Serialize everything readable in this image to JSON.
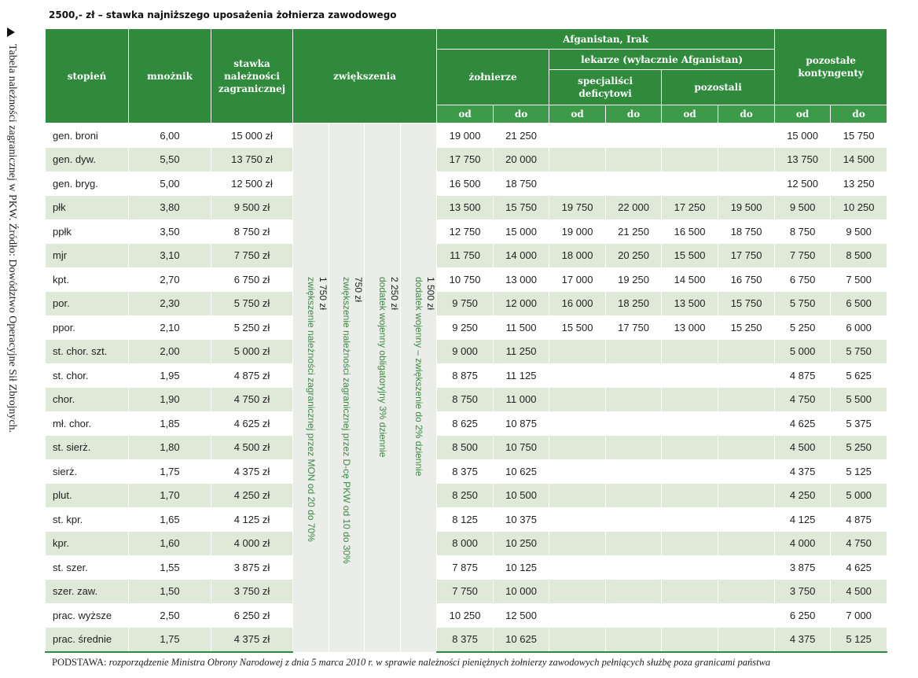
{
  "header": {
    "title": "2500,- zł – stawka najniższego uposażenia żołnierza zawodowego"
  },
  "side_note": "Tabela należności zagranicznej w PKW. Źródło: Dowództwo Operacyjne Sił Zbrojnych.",
  "table": {
    "columns": {
      "rank": "stopień",
      "multiplier": "mnożnik",
      "rate": "stawka należności zagranicznej",
      "increases": "zwiększenia",
      "region": "Afganistan, Irak",
      "soldiers": "żołnierze",
      "doctors": "lekarze (wyłacznie Afganistan)",
      "specialists": "specjaliści deficytowi",
      "other_doctors": "pozostali",
      "contingents": "pozostałe kontyngenty",
      "from": "od",
      "to": "do"
    },
    "increases": [
      {
        "amount": "1 750 zł",
        "description": "zwiększenie należności zagranicznej przez MON od 20 do 70%"
      },
      {
        "amount": "750 zł",
        "description": "zwiększenie należności zagranicznej przez D-cę PKW od 10 do 30%"
      },
      {
        "amount": "2 250 zł",
        "description": "dodatek wojenny obligatoryjny 3% dziennie"
      },
      {
        "amount": "1 500 zł",
        "description": "dodatek wojenny – zwiększenie do 2% dziennie"
      }
    ],
    "rows": [
      {
        "rank": "gen. broni",
        "multiplier": "6,00",
        "rate": "15 000 zł",
        "soldiers": [
          "19 000",
          "21 250"
        ],
        "contingents": [
          "15 000",
          "15 750"
        ]
      },
      {
        "rank": "gen. dyw.",
        "multiplier": "5,50",
        "rate": "13 750 zł",
        "soldiers": [
          "17 750",
          "20 000"
        ],
        "contingents": [
          "13 750",
          "14 500"
        ]
      },
      {
        "rank": "gen. bryg.",
        "multiplier": "5,00",
        "rate": "12 500 zł",
        "soldiers": [
          "16 500",
          "18 750"
        ],
        "contingents": [
          "12 500",
          "13 250"
        ]
      },
      {
        "rank": "płk",
        "multiplier": "3,80",
        "rate": "9 500 zł",
        "soldiers": [
          "13 500",
          "15 750"
        ],
        "specialists": [
          "19 750",
          "22 000"
        ],
        "other_doctors": [
          "17 250",
          "19 500"
        ],
        "contingents": [
          "9 500",
          "10 250"
        ]
      },
      {
        "rank": "ppłk",
        "multiplier": "3,50",
        "rate": "8 750 zł",
        "soldiers": [
          "12 750",
          "15 000"
        ],
        "specialists": [
          "19 000",
          "21 250"
        ],
        "other_doctors": [
          "16 500",
          "18 750"
        ],
        "contingents": [
          "8 750",
          "9 500"
        ]
      },
      {
        "rank": "mjr",
        "multiplier": "3,10",
        "rate": "7 750 zł",
        "soldiers": [
          "11 750",
          "14 000"
        ],
        "specialists": [
          "18 000",
          "20 250"
        ],
        "other_doctors": [
          "15 500",
          "17 750"
        ],
        "contingents": [
          "7 750",
          "8 500"
        ]
      },
      {
        "rank": "kpt.",
        "multiplier": "2,70",
        "rate": "6 750 zł",
        "soldiers": [
          "10 750",
          "13 000"
        ],
        "specialists": [
          "17 000",
          "19 250"
        ],
        "other_doctors": [
          "14 500",
          "16 750"
        ],
        "contingents": [
          "6 750",
          "7 500"
        ]
      },
      {
        "rank": "por.",
        "multiplier": "2,30",
        "rate": "5 750 zł",
        "soldiers": [
          "9 750",
          "12 000"
        ],
        "specialists": [
          "16 000",
          "18 250"
        ],
        "other_doctors": [
          "13 500",
          "15 750"
        ],
        "contingents": [
          "5 750",
          "6 500"
        ]
      },
      {
        "rank": "ppor.",
        "multiplier": "2,10",
        "rate": "5 250 zł",
        "soldiers": [
          "9 250",
          "11 500"
        ],
        "specialists": [
          "15 500",
          "17 750"
        ],
        "other_doctors": [
          "13 000",
          "15 250"
        ],
        "contingents": [
          "5 250",
          "6 000"
        ]
      },
      {
        "rank": "st. chor. szt.",
        "multiplier": "2,00",
        "rate": "5 000 zł",
        "soldiers": [
          "9 000",
          "11 250"
        ],
        "contingents": [
          "5 000",
          "5 750"
        ]
      },
      {
        "rank": "st. chor.",
        "multiplier": "1,95",
        "rate": "4 875 zł",
        "soldiers": [
          "8 875",
          "11 125"
        ],
        "contingents": [
          "4 875",
          "5 625"
        ]
      },
      {
        "rank": "chor.",
        "multiplier": "1,90",
        "rate": "4 750 zł",
        "soldiers": [
          "8 750",
          "11 000"
        ],
        "contingents": [
          "4 750",
          "5 500"
        ]
      },
      {
        "rank": "mł. chor.",
        "multiplier": "1,85",
        "rate": "4 625 zł",
        "soldiers": [
          "8 625",
          "10 875"
        ],
        "contingents": [
          "4 625",
          "5 375"
        ]
      },
      {
        "rank": "st. sierż.",
        "multiplier": "1,80",
        "rate": "4 500 zł",
        "soldiers": [
          "8 500",
          "10 750"
        ],
        "contingents": [
          "4 500",
          "5 250"
        ]
      },
      {
        "rank": "sierż.",
        "multiplier": "1,75",
        "rate": "4 375 zł",
        "soldiers": [
          "8 375",
          "10 625"
        ],
        "contingents": [
          "4 375",
          "5 125"
        ]
      },
      {
        "rank": "plut.",
        "multiplier": "1,70",
        "rate": "4 250 zł",
        "soldiers": [
          "8 250",
          "10 500"
        ],
        "contingents": [
          "4 250",
          "5 000"
        ]
      },
      {
        "rank": "st. kpr.",
        "multiplier": "1,65",
        "rate": "4 125 zł",
        "soldiers": [
          "8 125",
          "10 375"
        ],
        "contingents": [
          "4 125",
          "4 875"
        ]
      },
      {
        "rank": "kpr.",
        "multiplier": "1,60",
        "rate": "4 000 zł",
        "soldiers": [
          "8 000",
          "10 250"
        ],
        "contingents": [
          "4 000",
          "4 750"
        ]
      },
      {
        "rank": "st. szer.",
        "multiplier": "1,55",
        "rate": "3 875 zł",
        "soldiers": [
          "7 875",
          "10 125"
        ],
        "contingents": [
          "3 875",
          "4 625"
        ]
      },
      {
        "rank": "szer. zaw.",
        "multiplier": "1,50",
        "rate": "3 750 zł",
        "soldiers": [
          "7 750",
          "10 000"
        ],
        "contingents": [
          "3 750",
          "4 500"
        ]
      },
      {
        "rank": "prac. wyższe",
        "multiplier": "2,50",
        "rate": "6 250 zł",
        "soldiers": [
          "10 250",
          "12 500"
        ],
        "contingents": [
          "6 250",
          "7 000"
        ]
      },
      {
        "rank": "prac. średnie",
        "multiplier": "1,75",
        "rate": "4 375 zł",
        "soldiers": [
          "8 375",
          "10 625"
        ],
        "contingents": [
          "4 375",
          "5 125"
        ]
      }
    ]
  },
  "footer": {
    "label": "PODSTAWA:",
    "text": "rozporządzenie Ministra Obrony Narodowej z dnia 5 marca 2010 r. w sprawie należności pieniężnych żołnierzy zawodowych pełniących służbę poza granicami państwa"
  }
}
